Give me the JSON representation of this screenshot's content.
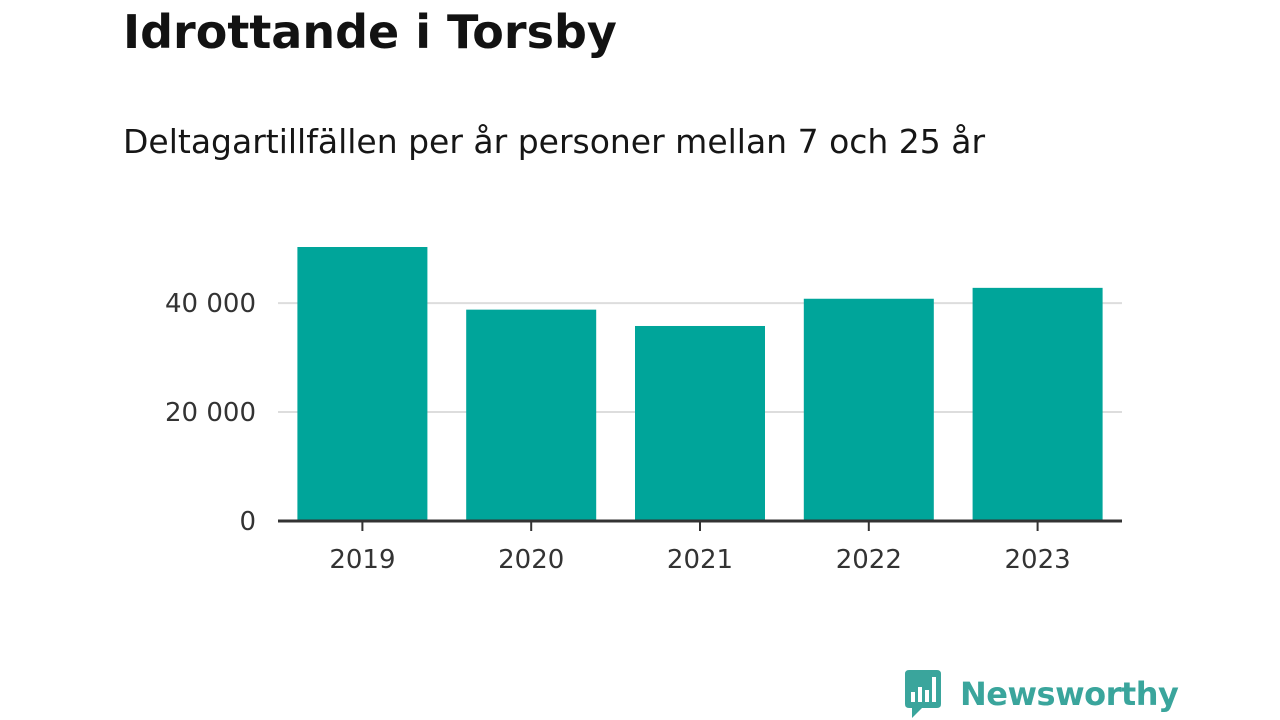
{
  "header": {
    "title": "Idrottande i Torsby",
    "subtitle": "Deltagartillfällen per år personer mellan 7 och 25 år"
  },
  "chart_data": {
    "type": "bar",
    "title": "Idrottande i Torsby",
    "subtitle": "Deltagartillfällen per år personer mellan 7 och 25 år",
    "xlabel": "",
    "ylabel": "",
    "categories": [
      "2019",
      "2020",
      "2021",
      "2022",
      "2023"
    ],
    "values": [
      50300,
      38800,
      35800,
      40800,
      42800
    ],
    "ylim": [
      0,
      50300
    ],
    "yticks": [
      0,
      20000,
      40000
    ],
    "ytick_labels": [
      "0",
      "20 000",
      "40 000"
    ],
    "grid": true,
    "legend": "none",
    "bar_color": "#00a59a"
  },
  "colors": {
    "bar": "#00a59a",
    "gridline": "#dddddd",
    "axis": "#333333",
    "brand": "#3aa59c"
  },
  "brand": {
    "name": "Newsworthy",
    "icon": "newsworthy-logo-icon"
  }
}
